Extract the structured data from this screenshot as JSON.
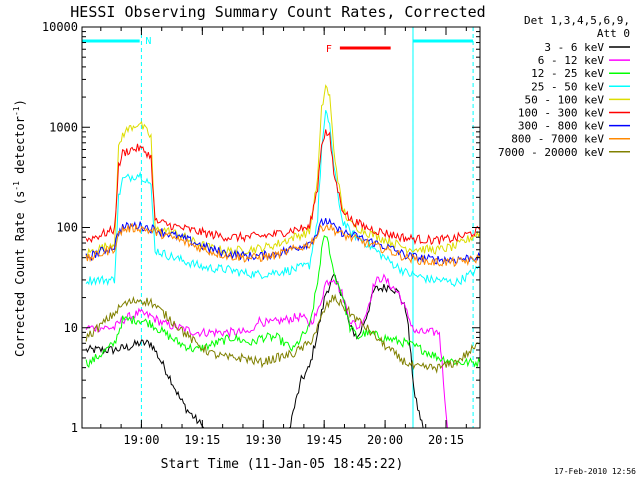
{
  "chart_data": {
    "type": "line",
    "title": "HESSI Observing Summary Count Rates, Corrected",
    "xlabel": "Start Time (11-Jan-05 18:45:22)",
    "ylabel_main": "Corrected Count Rate (s",
    "ylabel_sup1": "-1",
    "ylabel_mid": " detector",
    "ylabel_sup2": "-1",
    "ylabel_end": ")",
    "y_scale": "log",
    "ylim": [
      1,
      10000
    ],
    "xlim_minutes": [
      0,
      98
    ],
    "y_ticks": [
      {
        "value": 1,
        "label": "1"
      },
      {
        "value": 10,
        "label": "10"
      },
      {
        "value": 100,
        "label": "100"
      },
      {
        "value": 1000,
        "label": "1000"
      },
      {
        "value": 10000,
        "label": "10000"
      }
    ],
    "x_ticks": [
      {
        "minutes": 14.63,
        "label": "19:00"
      },
      {
        "minutes": 29.63,
        "label": "19:15"
      },
      {
        "minutes": 44.63,
        "label": "19:30"
      },
      {
        "minutes": 59.63,
        "label": "19:45"
      },
      {
        "minutes": 74.63,
        "label": "20:00"
      },
      {
        "minutes": 89.63,
        "label": "20:15"
      }
    ],
    "legend_header_1": "Det 1,3,4,5,6,9,",
    "legend_header_2": "Att 0",
    "legend_placement": "right",
    "series": [
      {
        "name": "3 - 6 keV",
        "color": "#000000",
        "points": [
          [
            1,
            6
          ],
          [
            8,
            6
          ],
          [
            12,
            6.5
          ],
          [
            14,
            7
          ],
          [
            17,
            7
          ],
          [
            19,
            5
          ],
          [
            22,
            3
          ],
          [
            24,
            2
          ],
          [
            26,
            1.5
          ],
          [
            30,
            1
          ],
          [
            39,
            1
          ],
          [
            43,
            1
          ],
          [
            44,
            1
          ],
          [
            51,
            1
          ],
          [
            54,
            3
          ],
          [
            56,
            4
          ],
          [
            58,
            9
          ],
          [
            60,
            22
          ],
          [
            62,
            32
          ],
          [
            64,
            22
          ],
          [
            66,
            10
          ],
          [
            68,
            8
          ],
          [
            70,
            13
          ],
          [
            72,
            24
          ],
          [
            76,
            26
          ],
          [
            78,
            22
          ],
          [
            80,
            14
          ],
          [
            81,
            5
          ],
          [
            82,
            2
          ],
          [
            84,
            1
          ],
          [
            98,
            1
          ]
        ]
      },
      {
        "name": "6 - 12 keV",
        "color": "#ff00ff",
        "points": [
          [
            1,
            10
          ],
          [
            8,
            10
          ],
          [
            10,
            12
          ],
          [
            14,
            14
          ],
          [
            17,
            13
          ],
          [
            20,
            11
          ],
          [
            24,
            10
          ],
          [
            28,
            9
          ],
          [
            33,
            9
          ],
          [
            37,
            9
          ],
          [
            42,
            9
          ],
          [
            43,
            12
          ],
          [
            46,
            11
          ],
          [
            50,
            12
          ],
          [
            54,
            13
          ],
          [
            56,
            11
          ],
          [
            58,
            14
          ],
          [
            60,
            28
          ],
          [
            62,
            32
          ],
          [
            64,
            22
          ],
          [
            66,
            12
          ],
          [
            68,
            10
          ],
          [
            70,
            14
          ],
          [
            72,
            28
          ],
          [
            74,
            32
          ],
          [
            78,
            22
          ],
          [
            80,
            14
          ],
          [
            82,
            9
          ],
          [
            84,
            9
          ],
          [
            88,
            9
          ],
          [
            90,
            1
          ],
          [
            98,
            1
          ]
        ]
      },
      {
        "name": "12 - 25 keV",
        "color": "#00ff00",
        "points": [
          [
            1,
            4.5
          ],
          [
            2,
            4.5
          ],
          [
            6,
            6
          ],
          [
            8,
            7
          ],
          [
            10,
            12
          ],
          [
            14,
            12
          ],
          [
            17,
            11
          ],
          [
            20,
            9
          ],
          [
            24,
            7
          ],
          [
            28,
            6
          ],
          [
            33,
            7
          ],
          [
            37,
            8
          ],
          [
            42,
            7
          ],
          [
            44,
            8
          ],
          [
            48,
            8
          ],
          [
            52,
            6
          ],
          [
            54,
            8
          ],
          [
            56,
            10
          ],
          [
            58,
            28
          ],
          [
            59,
            60
          ],
          [
            60,
            85
          ],
          [
            61,
            60
          ],
          [
            62,
            35
          ],
          [
            64,
            22
          ],
          [
            66,
            10
          ],
          [
            68,
            8
          ],
          [
            70,
            9
          ],
          [
            74,
            8
          ],
          [
            80,
            7
          ],
          [
            84,
            6
          ],
          [
            88,
            5
          ],
          [
            93,
            4.5
          ],
          [
            98,
            4.5
          ]
        ]
      },
      {
        "name": "25 - 50 keV",
        "color": "#00ffff",
        "points": [
          [
            1,
            30
          ],
          [
            8,
            30
          ],
          [
            9,
            200
          ],
          [
            10,
            300
          ],
          [
            12,
            320
          ],
          [
            14,
            340
          ],
          [
            16,
            300
          ],
          [
            17,
            250
          ],
          [
            18,
            60
          ],
          [
            20,
            55
          ],
          [
            24,
            48
          ],
          [
            30,
            40
          ],
          [
            36,
            38
          ],
          [
            40,
            35
          ],
          [
            44,
            34
          ],
          [
            48,
            36
          ],
          [
            52,
            38
          ],
          [
            56,
            42
          ],
          [
            58,
            120
          ],
          [
            59,
            600
          ],
          [
            60,
            1350
          ],
          [
            61,
            1100
          ],
          [
            62,
            400
          ],
          [
            64,
            120
          ],
          [
            66,
            90
          ],
          [
            70,
            70
          ],
          [
            76,
            45
          ],
          [
            80,
            35
          ],
          [
            86,
            30
          ],
          [
            88,
            30
          ],
          [
            92,
            28
          ],
          [
            96,
            35
          ],
          [
            98,
            40
          ]
        ]
      },
      {
        "name": "50 - 100 keV",
        "color": "#dddd00",
        "points": [
          [
            1,
            55
          ],
          [
            8,
            70
          ],
          [
            9,
            600
          ],
          [
            10,
            850
          ],
          [
            12,
            1000
          ],
          [
            14,
            1100
          ],
          [
            16,
            900
          ],
          [
            17,
            800
          ],
          [
            18,
            95
          ],
          [
            20,
            95
          ],
          [
            24,
            85
          ],
          [
            28,
            70
          ],
          [
            32,
            62
          ],
          [
            36,
            58
          ],
          [
            40,
            60
          ],
          [
            44,
            62
          ],
          [
            48,
            68
          ],
          [
            52,
            80
          ],
          [
            56,
            90
          ],
          [
            58,
            300
          ],
          [
            59,
            1500
          ],
          [
            60,
            2600
          ],
          [
            61,
            2000
          ],
          [
            62,
            600
          ],
          [
            64,
            160
          ],
          [
            66,
            110
          ],
          [
            70,
            90
          ],
          [
            76,
            72
          ],
          [
            80,
            62
          ],
          [
            86,
            60
          ],
          [
            88,
            60
          ],
          [
            92,
            65
          ],
          [
            96,
            80
          ],
          [
            98,
            90
          ]
        ]
      },
      {
        "name": "100 - 300 keV",
        "color": "#ff0000",
        "points": [
          [
            1,
            75
          ],
          [
            8,
            95
          ],
          [
            9,
            400
          ],
          [
            10,
            550
          ],
          [
            12,
            600
          ],
          [
            14,
            620
          ],
          [
            16,
            560
          ],
          [
            17,
            500
          ],
          [
            18,
            115
          ],
          [
            20,
            110
          ],
          [
            24,
            100
          ],
          [
            28,
            92
          ],
          [
            32,
            85
          ],
          [
            36,
            80
          ],
          [
            40,
            80
          ],
          [
            44,
            82
          ],
          [
            48,
            86
          ],
          [
            52,
            95
          ],
          [
            56,
            100
          ],
          [
            58,
            250
          ],
          [
            59,
            700
          ],
          [
            60,
            900
          ],
          [
            61,
            800
          ],
          [
            62,
            350
          ],
          [
            64,
            160
          ],
          [
            66,
            120
          ],
          [
            70,
            100
          ],
          [
            76,
            85
          ],
          [
            80,
            78
          ],
          [
            86,
            75
          ],
          [
            88,
            75
          ],
          [
            92,
            78
          ],
          [
            96,
            88
          ],
          [
            98,
            95
          ]
        ]
      },
      {
        "name": "300 - 800 keV",
        "color": "#0000ff",
        "points": [
          [
            1,
            50
          ],
          [
            8,
            65
          ],
          [
            9,
            90
          ],
          [
            10,
            100
          ],
          [
            12,
            103
          ],
          [
            14,
            105
          ],
          [
            16,
            100
          ],
          [
            17,
            98
          ],
          [
            18,
            95
          ],
          [
            20,
            90
          ],
          [
            24,
            80
          ],
          [
            28,
            70
          ],
          [
            32,
            60
          ],
          [
            36,
            55
          ],
          [
            40,
            52
          ],
          [
            44,
            52
          ],
          [
            48,
            55
          ],
          [
            52,
            62
          ],
          [
            56,
            70
          ],
          [
            58,
            90
          ],
          [
            59,
            110
          ],
          [
            60,
            118
          ],
          [
            61,
            110
          ],
          [
            62,
            100
          ],
          [
            64,
            90
          ],
          [
            66,
            85
          ],
          [
            70,
            75
          ],
          [
            76,
            62
          ],
          [
            80,
            52
          ],
          [
            86,
            48
          ],
          [
            88,
            48
          ],
          [
            92,
            48
          ],
          [
            96,
            50
          ],
          [
            98,
            52
          ]
        ]
      },
      {
        "name": "800 - 7000 keV",
        "color": "#ff8800",
        "points": [
          [
            1,
            48
          ],
          [
            8,
            62
          ],
          [
            9,
            85
          ],
          [
            10,
            95
          ],
          [
            12,
            98
          ],
          [
            14,
            100
          ],
          [
            16,
            95
          ],
          [
            17,
            92
          ],
          [
            18,
            90
          ],
          [
            20,
            85
          ],
          [
            24,
            75
          ],
          [
            28,
            65
          ],
          [
            32,
            57
          ],
          [
            36,
            52
          ],
          [
            40,
            50
          ],
          [
            44,
            50
          ],
          [
            48,
            53
          ],
          [
            52,
            60
          ],
          [
            56,
            68
          ],
          [
            58,
            85
          ],
          [
            59,
            100
          ],
          [
            60,
            105
          ],
          [
            61,
            100
          ],
          [
            62,
            95
          ],
          [
            64,
            85
          ],
          [
            66,
            80
          ],
          [
            70,
            70
          ],
          [
            76,
            58
          ],
          [
            80,
            50
          ],
          [
            86,
            45
          ],
          [
            88,
            45
          ],
          [
            92,
            45
          ],
          [
            96,
            47
          ],
          [
            98,
            50
          ]
        ]
      },
      {
        "name": "7000 - 20000 keV",
        "color": "#808000",
        "points": [
          [
            1,
            8
          ],
          [
            4,
            10
          ],
          [
            8,
            14
          ],
          [
            10,
            17
          ],
          [
            14,
            19
          ],
          [
            17,
            18
          ],
          [
            20,
            14
          ],
          [
            24,
            10
          ],
          [
            28,
            7
          ],
          [
            32,
            5.5
          ],
          [
            36,
            5
          ],
          [
            40,
            5
          ],
          [
            44,
            4.5
          ],
          [
            48,
            5
          ],
          [
            52,
            5.5
          ],
          [
            56,
            7
          ],
          [
            58,
            10
          ],
          [
            60,
            16
          ],
          [
            62,
            20
          ],
          [
            64,
            17
          ],
          [
            66,
            14
          ],
          [
            70,
            10
          ],
          [
            74,
            7
          ],
          [
            78,
            5
          ],
          [
            82,
            4
          ],
          [
            86,
            4
          ],
          [
            88,
            4
          ],
          [
            92,
            4.5
          ],
          [
            96,
            6
          ],
          [
            98,
            7
          ]
        ]
      }
    ],
    "annotations": {
      "night_label": "N",
      "flare_label": "F",
      "night_color": "#00ffff",
      "flare_color": "#ff0000"
    },
    "timestamp": "17-Feb-2010 12:56"
  }
}
